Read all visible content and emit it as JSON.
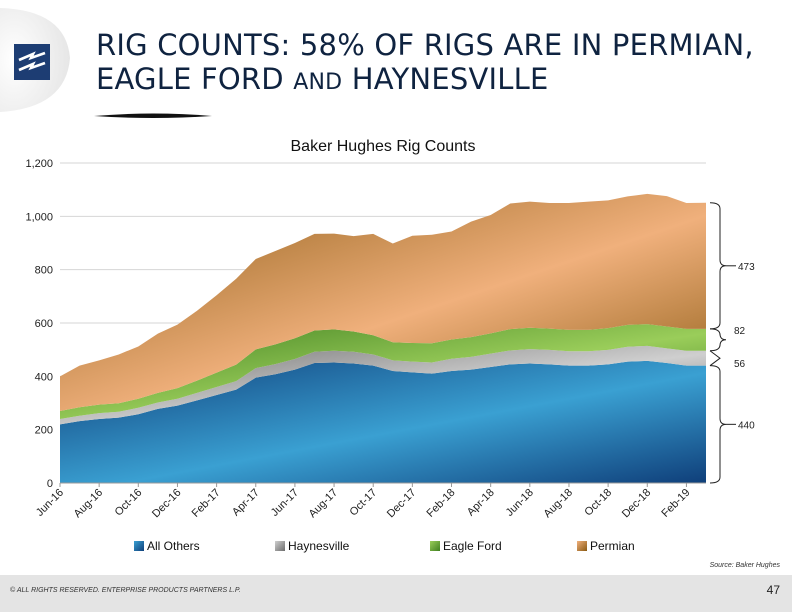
{
  "header": {
    "title_line1": "RIG COUNTS:  58% OF RIGS ARE IN PERMIAN,",
    "title_line2_a": "EAGLE FORD ",
    "title_line2_b": "AND",
    "title_line2_c": " HAYNESVILLE"
  },
  "logo": {
    "icon": "enterprise-logo-icon",
    "color": "#1d3d73"
  },
  "chart_data": {
    "type": "area",
    "stacked": true,
    "title": "Baker Hughes Rig Counts",
    "xlabel": "",
    "ylabel": "",
    "ylim": [
      0,
      1200
    ],
    "yticks": [
      0,
      200,
      400,
      600,
      800,
      1000,
      1200
    ],
    "ytick_labels": [
      "0",
      "200",
      "400",
      "600",
      "800",
      "1,000",
      "1,200"
    ],
    "grid": true,
    "legend_position": "bottom",
    "categories": [
      "Jun-16",
      "Jul-16",
      "Aug-16",
      "Sep-16",
      "Oct-16",
      "Nov-16",
      "Dec-16",
      "Jan-17",
      "Feb-17",
      "Mar-17",
      "Apr-17",
      "May-17",
      "Jun-17",
      "Jul-17",
      "Aug-17",
      "Sep-17",
      "Oct-17",
      "Nov-17",
      "Dec-17",
      "Jan-18",
      "Feb-18",
      "Mar-18",
      "Apr-18",
      "May-18",
      "Jun-18",
      "Jul-18",
      "Aug-18",
      "Sep-18",
      "Oct-18",
      "Nov-18",
      "Dec-18",
      "Jan-19",
      "Feb-19",
      "Mar-19"
    ],
    "tick_labels": [
      "Jun-16",
      "Aug-16",
      "Oct-16",
      "Dec-16",
      "Feb-17",
      "Apr-17",
      "Jun-17",
      "Aug-17",
      "Oct-17",
      "Dec-17",
      "Feb-18",
      "Apr-18",
      "Jun-18",
      "Aug-18",
      "Oct-18",
      "Dec-18",
      "Feb-19"
    ],
    "series": [
      {
        "name": "All Others",
        "color_light": "#3aa0d2",
        "color_dark": "#0f3f7a",
        "values": [
          220,
          232,
          240,
          245,
          258,
          278,
          290,
          310,
          330,
          350,
          395,
          408,
          425,
          450,
          452,
          448,
          440,
          420,
          415,
          410,
          420,
          425,
          435,
          445,
          448,
          445,
          440,
          440,
          445,
          455,
          458,
          450,
          440,
          440
        ]
      },
      {
        "name": "Haynesville",
        "color_light": "#cfcfcf",
        "color_dark": "#6d6d6d",
        "values": [
          20,
          20,
          22,
          22,
          24,
          24,
          26,
          28,
          30,
          32,
          36,
          38,
          40,
          42,
          44,
          44,
          42,
          40,
          40,
          42,
          46,
          48,
          50,
          52,
          54,
          54,
          54,
          54,
          54,
          56,
          56,
          55,
          56,
          56
        ]
      },
      {
        "name": "Eagle Ford",
        "color_light": "#9acd5a",
        "color_dark": "#3f7f1f",
        "values": [
          30,
          32,
          32,
          32,
          34,
          36,
          40,
          46,
          54,
          62,
          70,
          74,
          78,
          80,
          80,
          76,
          72,
          68,
          70,
          72,
          72,
          74,
          76,
          80,
          80,
          80,
          80,
          80,
          82,
          82,
          82,
          82,
          82,
          82
        ]
      },
      {
        "name": "Permian",
        "color_light": "#f0b07c",
        "color_dark": "#8a5a12",
        "values": [
          130,
          156,
          166,
          183,
          196,
          222,
          238,
          262,
          290,
          322,
          339,
          350,
          357,
          362,
          359,
          358,
          380,
          370,
          402,
          407,
          405,
          433,
          444,
          471,
          473,
          471,
          476,
          481,
          479,
          482,
          488,
          489,
          472,
          473
        ]
      }
    ],
    "annotations": [
      {
        "series": "Permian",
        "label": "473"
      },
      {
        "series": "Eagle Ford",
        "label": "82"
      },
      {
        "series": "Haynesville",
        "label": "56"
      },
      {
        "series": "All Others",
        "label": "440"
      }
    ],
    "source": "Source: Baker Hughes"
  },
  "footer": {
    "copyright": "© ALL RIGHTS RESERVED. ENTERPRISE PRODUCTS PARTNERS L.P.",
    "page_number": "47"
  }
}
